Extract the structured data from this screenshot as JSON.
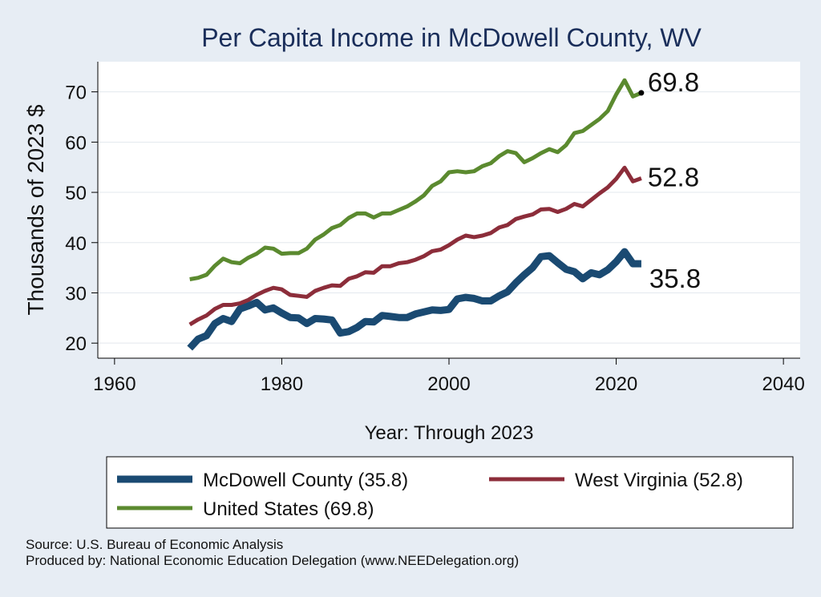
{
  "chart_data": {
    "type": "line",
    "title": "Per Capita Income in McDowell County, WV",
    "xlabel": "Year: Through 2023",
    "ylabel": "Thousands of 2023 $",
    "xlim": [
      1958,
      2042
    ],
    "ylim": [
      17,
      76
    ],
    "xticks": [
      1960,
      1980,
      2000,
      2020,
      2040
    ],
    "yticks": [
      20,
      30,
      40,
      50,
      60,
      70
    ],
    "grid": "horizontal",
    "legend_position": "bottom",
    "x": [
      1969,
      1970,
      1971,
      1972,
      1973,
      1974,
      1975,
      1976,
      1977,
      1978,
      1979,
      1980,
      1981,
      1982,
      1983,
      1984,
      1985,
      1986,
      1987,
      1988,
      1989,
      1990,
      1991,
      1992,
      1993,
      1994,
      1995,
      1996,
      1997,
      1998,
      1999,
      2000,
      2001,
      2002,
      2003,
      2004,
      2005,
      2006,
      2007,
      2008,
      2009,
      2010,
      2011,
      2012,
      2013,
      2014,
      2015,
      2016,
      2017,
      2018,
      2019,
      2020,
      2021,
      2022,
      2023
    ],
    "series": [
      {
        "name": "McDowell County (35.8)",
        "color": "#1a4a72",
        "end_label": "35.8",
        "values": [
          19.0,
          20.8,
          21.5,
          23.9,
          24.9,
          24.3,
          26.8,
          27.4,
          28.1,
          26.6,
          27.0,
          26.0,
          25.1,
          25.0,
          23.9,
          24.9,
          24.8,
          24.6,
          22.0,
          22.3,
          23.1,
          24.3,
          24.2,
          25.5,
          25.3,
          25.1,
          25.1,
          25.8,
          26.2,
          26.6,
          26.5,
          26.7,
          28.8,
          29.1,
          28.9,
          28.4,
          28.4,
          29.4,
          30.2,
          32.0,
          33.6,
          35.0,
          37.2,
          37.4,
          36.0,
          34.7,
          34.2,
          32.8,
          34.0,
          33.6,
          34.6,
          36.2,
          38.2,
          35.8,
          35.8
        ]
      },
      {
        "name": "West Virginia (52.8)",
        "color": "#8c2d3a",
        "end_label": "52.8",
        "values": [
          23.7,
          24.7,
          25.5,
          26.8,
          27.6,
          27.6,
          27.9,
          28.6,
          29.6,
          30.4,
          31.0,
          30.7,
          29.6,
          29.4,
          29.2,
          30.4,
          31.0,
          31.5,
          31.4,
          32.8,
          33.3,
          34.1,
          34.0,
          35.3,
          35.3,
          35.9,
          36.1,
          36.6,
          37.3,
          38.3,
          38.6,
          39.5,
          40.6,
          41.4,
          41.1,
          41.4,
          41.9,
          43.0,
          43.5,
          44.7,
          45.2,
          45.6,
          46.6,
          46.7,
          46.1,
          46.7,
          47.7,
          47.2,
          48.5,
          49.8,
          51.0,
          52.7,
          54.9,
          52.2,
          52.8
        ]
      },
      {
        "name": "United States (69.8)",
        "color": "#5b8a2f",
        "end_label": "69.8",
        "values": [
          32.7,
          33.0,
          33.6,
          35.4,
          36.8,
          36.1,
          35.9,
          37.0,
          37.8,
          39.0,
          38.8,
          37.8,
          37.9,
          37.9,
          38.8,
          40.6,
          41.6,
          42.9,
          43.5,
          44.9,
          45.8,
          45.8,
          45.0,
          45.8,
          45.8,
          46.5,
          47.2,
          48.2,
          49.4,
          51.3,
          52.2,
          54.0,
          54.2,
          54.0,
          54.2,
          55.2,
          55.8,
          57.2,
          58.2,
          57.8,
          56.0,
          56.8,
          57.8,
          58.6,
          58.0,
          59.4,
          61.8,
          62.2,
          63.4,
          64.6,
          66.2,
          69.5,
          72.3,
          69.1,
          69.8
        ]
      }
    ]
  },
  "notes": {
    "source": "Source: U.S. Bureau of Economic Analysis",
    "produced_by": "Produced by: National Economic Education Delegation (www.NEEDelegation.org)"
  }
}
